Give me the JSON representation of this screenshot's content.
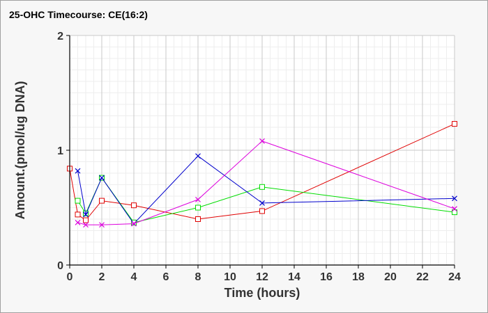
{
  "chart_data": {
    "type": "line",
    "title": "25-OHC Timecourse: CE(16:2)",
    "xlabel": "Time (hours)",
    "ylabel": "Amount.(pmol/ug DNA)",
    "xlim": [
      0,
      24
    ],
    "ylim": [
      0,
      2
    ],
    "xticks": [
      0,
      2,
      4,
      6,
      8,
      10,
      12,
      14,
      16,
      18,
      20,
      22,
      24
    ],
    "yticks": [
      0,
      1,
      2
    ],
    "grid": true,
    "legend": "none",
    "series": [
      {
        "color": "#e00000",
        "marker": "square",
        "x": [
          0,
          0.5,
          1,
          2,
          4,
          8,
          12,
          24
        ],
        "y": [
          0.84,
          0.44,
          0.39,
          0.56,
          0.52,
          0.4,
          0.47,
          1.23
        ]
      },
      {
        "color": "#00dd00",
        "marker": "square",
        "x": [
          0.5,
          1,
          2,
          4,
          8,
          12,
          24
        ],
        "y": [
          0.56,
          0.45,
          0.76,
          0.37,
          0.5,
          0.68,
          0.46
        ]
      },
      {
        "color": "#0000cc",
        "marker": "x",
        "x": [
          0.5,
          1,
          2,
          4,
          8,
          12,
          24
        ],
        "y": [
          0.82,
          0.44,
          0.76,
          0.36,
          0.95,
          0.54,
          0.58
        ]
      },
      {
        "color": "#dd00dd",
        "marker": "x",
        "x": [
          0.5,
          1,
          2,
          4,
          8,
          12,
          24
        ],
        "y": [
          0.37,
          0.35,
          0.35,
          0.36,
          0.57,
          1.08,
          0.49
        ]
      }
    ]
  }
}
